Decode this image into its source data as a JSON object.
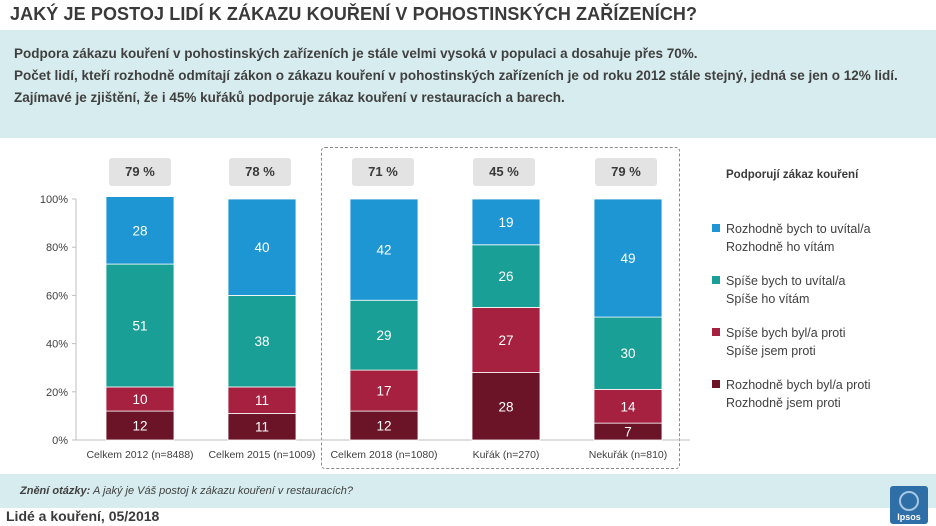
{
  "title": "JAKÝ JE POSTOJ LIDÍ K ZÁKAZU KOUŘENÍ V POHOSTINSKÝCH ZAŘÍZENÍCH?",
  "intro": [
    "Podpora zákazu kouření v pohostinských zařízeních je stále velmi vysoká v populaci a dosahuje přes 70%.",
    "Počet lidí, kteří rozhodně odmítají zákon o zákazu kouření v pohostinských zařízeních je od roku 2012 stále stejný, jedná se jen o 12% lidí.",
    "Zajímavé je zjištění, že i 45% kuřáků podporuje zákaz kouření v restauracích a barech."
  ],
  "support_pct": [
    "79 %",
    "78 %",
    "71 %",
    "45 %",
    "79 %"
  ],
  "legend": {
    "title": "Podporují zákaz kouření",
    "items": [
      {
        "line1": "Rozhodně bych to uvítal/a",
        "line2": "Rozhodně ho vítám",
        "color": "#1f96d4"
      },
      {
        "line1": "Spíše bych to uvítal/a",
        "line2": "Spíše ho vítám",
        "color": "#1a9f96"
      },
      {
        "line1": "Spíše bych byl/a proti",
        "line2": "Spíše jsem proti",
        "color": "#a6203f"
      },
      {
        "line1": "Rozhodně bych byl/a proti",
        "line2": "Rozhodně jsem proti",
        "color": "#6b1427"
      }
    ]
  },
  "chart_data": {
    "type": "bar",
    "stacked": true,
    "categories": [
      "Celkem 2012 (n=8488)",
      "Celkem 2015 (n=1009)",
      "Celkem 2018 (n=1080)",
      "Kuřák (n=270)",
      "Nekuřák (n=810)"
    ],
    "series": [
      {
        "name": "Rozhodně jsem proti",
        "color": "#6b1427",
        "values": [
          12,
          11,
          12,
          28,
          7
        ]
      },
      {
        "name": "Spíše jsem proti",
        "color": "#a6203f",
        "values": [
          10,
          11,
          17,
          27,
          14
        ]
      },
      {
        "name": "Spíše ho vítám",
        "color": "#1a9f96",
        "values": [
          51,
          38,
          29,
          26,
          30
        ]
      },
      {
        "name": "Rozhodně ho vítám",
        "color": "#1f96d4",
        "values": [
          28,
          40,
          42,
          19,
          49
        ]
      }
    ],
    "ylim": [
      0,
      100
    ],
    "yticks": [
      "0%",
      "20%",
      "40%",
      "60%",
      "80%",
      "100%"
    ],
    "grid": false,
    "legend_position": "right"
  },
  "footer": {
    "question_label": "Znění otázky:",
    "question_text": "A jaký je Váš postoj k zákazu kouření v restauracích?",
    "date": "Lidé a kouření, 05/2018",
    "logo_text": "Ipsos"
  }
}
